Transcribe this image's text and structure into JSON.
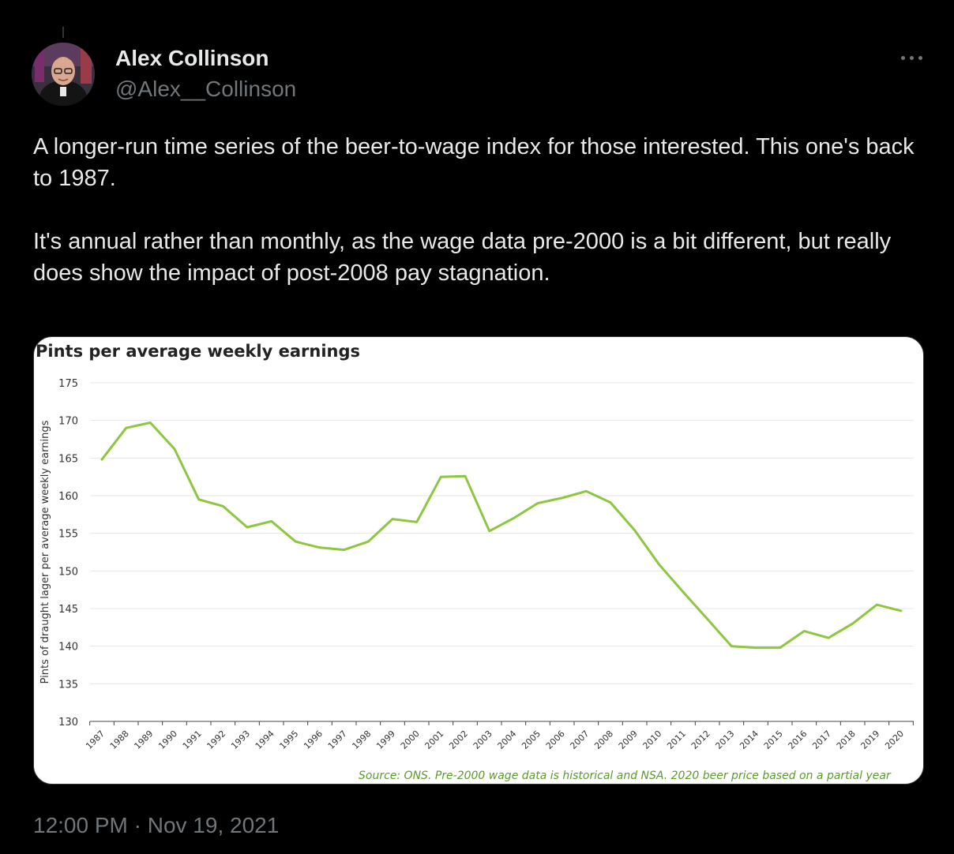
{
  "author": {
    "display_name": "Alex Collinson",
    "handle": "@Alex__Collinson"
  },
  "icons": {
    "more": "more-horizontal-icon"
  },
  "tweet": {
    "paragraphs": [
      "A longer-run time series of the beer-to-wage index for those interested. This one's back to 1987.",
      "It's annual rather than monthly, as the wage data pre-2000 is a bit different, but really does show the impact of post-2008 pay stagnation."
    ],
    "timestamp": "12:00 PM · Nov 19, 2021"
  },
  "colors": {
    "background": "#000000",
    "text": "#e7e9ea",
    "muted": "#71767b",
    "line": "#8dc63f",
    "source_text": "#5a9a2a"
  },
  "chart_data": {
    "type": "line",
    "title": "Pints per average weekly earnings",
    "ylabel": "Pints of draught lager per average weekly earnings",
    "xlabel": "",
    "categories": [
      "1987",
      "1988",
      "1989",
      "1990",
      "1991",
      "1992",
      "1993",
      "1994",
      "1995",
      "1996",
      "1997",
      "1998",
      "1999",
      "2000",
      "2001",
      "2002",
      "2003",
      "2004",
      "2005",
      "2006",
      "2007",
      "2008",
      "2009",
      "2010",
      "2011",
      "2012",
      "2013",
      "2014",
      "2015",
      "2016",
      "2017",
      "2018",
      "2019",
      "2020"
    ],
    "values": [
      164.8,
      169.0,
      169.7,
      166.2,
      159.5,
      158.6,
      155.8,
      156.6,
      153.9,
      153.1,
      152.8,
      153.9,
      156.9,
      156.5,
      162.5,
      162.6,
      155.3,
      157.0,
      159.0,
      159.7,
      160.6,
      159.1,
      155.4,
      150.9,
      147.2,
      143.6,
      140.0,
      139.8,
      139.8,
      142.0,
      141.1,
      143.0,
      145.5,
      144.7
    ],
    "ylim": [
      130,
      175
    ],
    "yticks": [
      130,
      135,
      140,
      145,
      150,
      155,
      160,
      165,
      170,
      175
    ],
    "grid": true,
    "source": "Source: ONS. Pre-2000 wage data is historical and NSA. 2020 beer price based on a partial year"
  }
}
